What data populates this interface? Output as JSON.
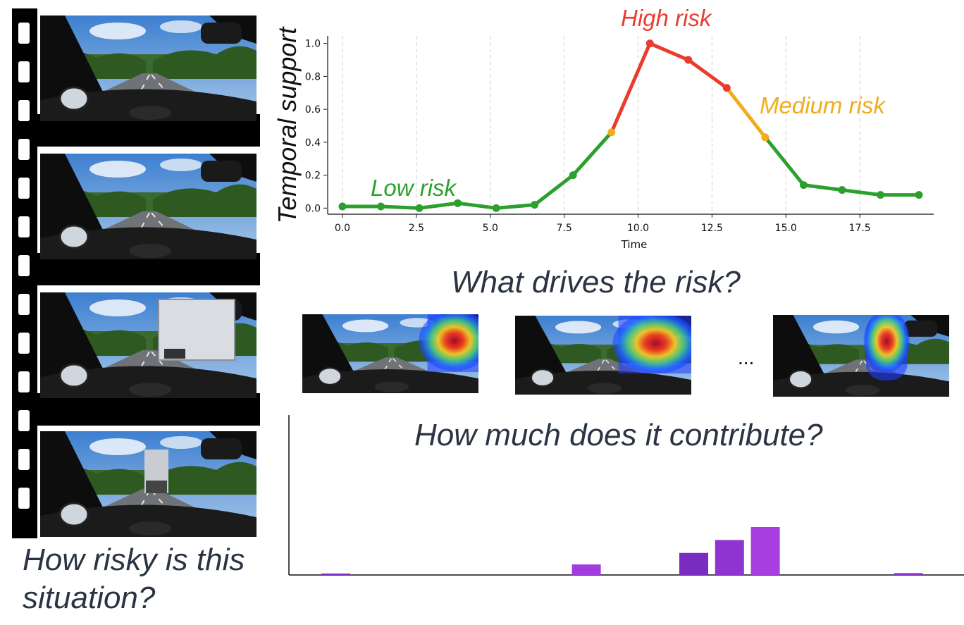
{
  "questions": {
    "risky": "How risky is this situation?",
    "drives": "What drives the risk?",
    "contribute": "How much does it contribute?"
  },
  "ellipsis": "...",
  "chart_data": {
    "type": "line",
    "xlabel": "Time",
    "ylabel": "Temporal support",
    "xlim": [
      -0.5,
      20
    ],
    "ylim": [
      -0.02,
      1.02
    ],
    "xticks": [
      "0.0",
      "2.5",
      "5.0",
      "7.5",
      "10.0",
      "12.5",
      "15.0",
      "17.5"
    ],
    "yticks": [
      "0.0",
      "0.2",
      "0.4",
      "0.6",
      "0.8",
      "1.0"
    ],
    "grid": "vertical-dashed",
    "x": [
      0.0,
      1.3,
      2.6,
      3.9,
      5.2,
      6.5,
      7.8,
      9.1,
      10.4,
      11.7,
      13.0,
      14.3,
      15.6,
      16.9,
      18.2,
      19.5
    ],
    "y": [
      0.01,
      0.01,
      0.0,
      0.03,
      0.0,
      0.02,
      0.2,
      0.46,
      1.0,
      0.9,
      0.73,
      0.43,
      0.14,
      0.11,
      0.08,
      0.08
    ],
    "risk_levels": [
      "low",
      "low",
      "low",
      "low",
      "low",
      "low",
      "low",
      "medium",
      "high",
      "high",
      "high",
      "medium",
      "low",
      "low",
      "low",
      "low"
    ],
    "colors": {
      "low": "#2ca02c",
      "medium": "#f0ac1c",
      "high": "#ea3b2e"
    },
    "annotations": [
      {
        "text": "Low risk",
        "level": "low"
      },
      {
        "text": "High risk",
        "level": "high"
      },
      {
        "text": "Medium risk",
        "level": "medium"
      }
    ]
  },
  "contribution_bars": {
    "type": "bar",
    "values": [
      0.03,
      0.0,
      0.0,
      0.0,
      0.0,
      0.0,
      0.0,
      0.22,
      0.0,
      0.0,
      0.46,
      0.73,
      1.0,
      0.0,
      0.0,
      0.0,
      0.04,
      0.0
    ],
    "colors": [
      "#7b2fbf",
      "#9b34d6",
      "#9b34d6",
      "#9b34d6",
      "#9b34d6",
      "#9b34d6",
      "#9b34d6",
      "#a23cde",
      "#9b34d6",
      "#9b34d6",
      "#7a2bc0",
      "#8f34d0",
      "#a63ee0",
      "#9b34d6",
      "#9b34d6",
      "#9b34d6",
      "#8f34d0",
      "#9b34d6"
    ]
  }
}
